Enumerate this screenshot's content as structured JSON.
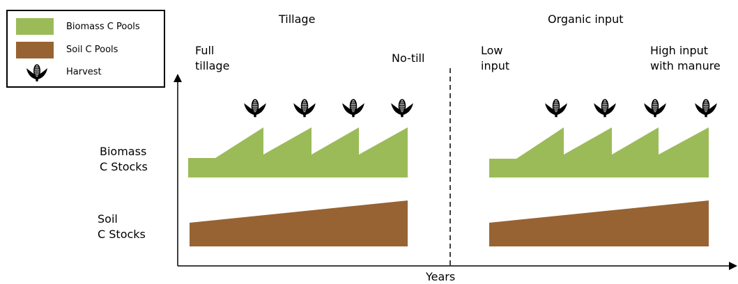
{
  "colors": {
    "biomass": "#9BBB59",
    "soil": "#976333",
    "axis": "#000000"
  },
  "legend": {
    "items": [
      {
        "label": "Biomass C Pools",
        "kind": "swatch",
        "color": "#9BBB59"
      },
      {
        "label": "Soil C Pools",
        "kind": "swatch",
        "color": "#976333"
      },
      {
        "label": "Harvest",
        "kind": "icon",
        "icon": "corn-icon"
      }
    ]
  },
  "panels": {
    "tillage": {
      "title": "Tillage",
      "left_label": "Full\ntillage",
      "right_label": "No-till",
      "harvests": 4
    },
    "organic": {
      "title": "Organic input",
      "left_label": "Low\ninput",
      "right_label": "High input\nwith manure",
      "harvests": 4
    }
  },
  "rows": {
    "biomass": "Biomass\nC Stocks",
    "soil": "Soil\nC Stocks"
  },
  "axis": {
    "xlabel": "Years"
  }
}
